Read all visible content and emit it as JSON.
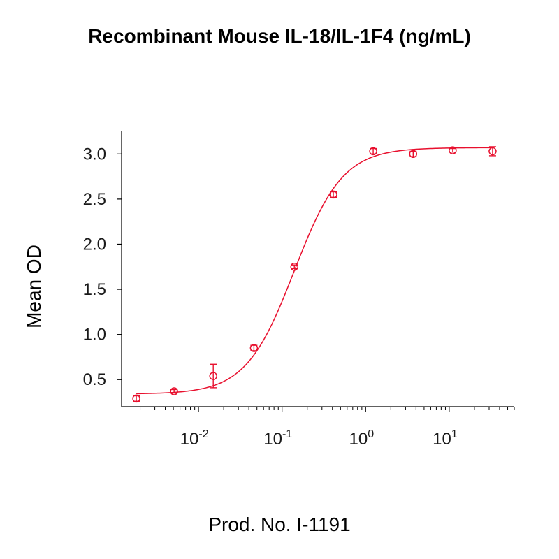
{
  "title": "Recombinant Mouse IL-18/IL-1F4 (ng/mL)",
  "footer": "Prod. No. I-1191",
  "colors": {
    "series": "#e8102e",
    "axis": "#000000"
  },
  "chart_data": {
    "type": "scatter",
    "title": "Recombinant Mouse IL-18/IL-1F4 (ng/mL)",
    "xlabel": "",
    "ylabel": "Mean OD",
    "x_scale": "log",
    "xlim": [
      0.0012,
      60
    ],
    "ylim": [
      0.2,
      3.25
    ],
    "x_ticks": [
      0.01,
      0.1,
      1,
      10
    ],
    "x_tick_labels": [
      {
        "base": "10",
        "exp": "-2"
      },
      {
        "base": "10",
        "exp": "-1"
      },
      {
        "base": "10",
        "exp": "0"
      },
      {
        "base": "10",
        "exp": "1"
      }
    ],
    "y_ticks": [
      0.5,
      1.0,
      1.5,
      2.0,
      2.5,
      3.0
    ],
    "y_tick_labels": [
      "0.5",
      "1.0",
      "1.5",
      "2.0",
      "2.5",
      "3.0"
    ],
    "grid": false,
    "series": [
      {
        "x": [
          0.0018,
          0.0051,
          0.015,
          0.046,
          0.14,
          0.41,
          1.23,
          3.7,
          11,
          33
        ],
        "y": [
          0.29,
          0.37,
          0.54,
          0.85,
          1.75,
          2.55,
          3.03,
          3.0,
          3.04,
          3.03
        ],
        "error": [
          0.03,
          0.02,
          0.13,
          0.03,
          0.02,
          0.03,
          0.03,
          0.03,
          0.02,
          0.05
        ],
        "fit": {
          "bottom": 0.34,
          "top": 3.07,
          "ec50": 0.14,
          "hill": 1.5
        }
      }
    ]
  }
}
